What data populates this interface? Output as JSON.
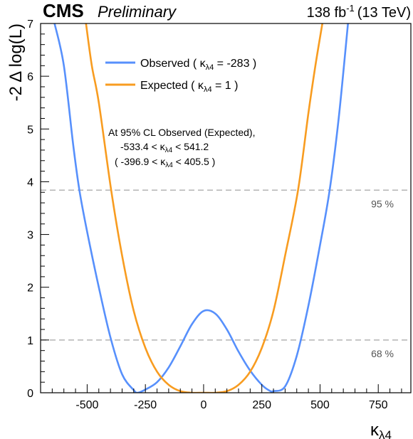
{
  "chart_data": {
    "type": "line",
    "experiment": "CMS",
    "status": "Preliminary",
    "lumi_text": "138 fb",
    "lumi_exp": "-1",
    "energy_text": "(13 TeV)",
    "xlabel": "κ",
    "xlabel_sub": "λ4",
    "ylabel": "-2 Δ log(L)",
    "xlim": [
      -700,
      890
    ],
    "ylim": [
      0,
      7
    ],
    "xticks": [
      -500,
      -250,
      0,
      250,
      500,
      750
    ],
    "yticks": [
      0,
      1,
      2,
      3,
      4,
      5,
      6,
      7
    ],
    "grid": false,
    "legend_position": "top-left",
    "series": [
      {
        "name": "Observed",
        "legend_label": "Observed ( κ",
        "legend_sub": "λ4",
        "legend_value": " =  -283 )",
        "color": "#5790fc",
        "x": [
          -640,
          -600,
          -560,
          -533.4,
          -500,
          -450,
          -400,
          -350,
          -300,
          -283,
          -250,
          -200,
          -150,
          -100,
          -50,
          0,
          50,
          100,
          150,
          200,
          250,
          283,
          300,
          350,
          400,
          450,
          500,
          541.2,
          580,
          620
        ],
        "y": [
          7.0,
          6.2,
          4.7,
          3.84,
          3.05,
          2.0,
          1.05,
          0.35,
          0.05,
          0.0,
          0.06,
          0.2,
          0.48,
          0.88,
          1.3,
          1.55,
          1.5,
          1.2,
          0.78,
          0.42,
          0.15,
          0.04,
          0.03,
          0.12,
          0.7,
          1.65,
          2.8,
          3.84,
          5.2,
          7.0
        ]
      },
      {
        "name": "Expected",
        "legend_label": "Expected ( κ",
        "legend_sub": "λ4",
        "legend_value": " =  1 )",
        "color": "#f89c20",
        "x": [
          -505,
          -480,
          -450,
          -396.9,
          -350,
          -300,
          -250,
          -200,
          -150,
          -100,
          -50,
          0,
          50,
          100,
          150,
          200,
          250,
          300,
          350,
          405.5,
          450,
          480,
          510
        ],
        "y": [
          7.0,
          6.2,
          5.5,
          3.84,
          2.6,
          1.55,
          0.85,
          0.4,
          0.15,
          0.03,
          0.0,
          0.0,
          0.0,
          0.03,
          0.15,
          0.4,
          0.85,
          1.55,
          2.6,
          3.84,
          5.3,
          6.2,
          7.0
        ]
      }
    ],
    "reference_lines": [
      {
        "y": 3.84,
        "label": "95 %"
      },
      {
        "y": 1.0,
        "label": "68 %"
      }
    ],
    "annotation": {
      "line1": "At 95% CL Observed (Expected),",
      "line2_pre": "-533.4 < κ",
      "line2_sub": "λ4",
      "line2_post": " < 541.2",
      "line3_pre": "( -396.9 < κ",
      "line3_sub": "λ4",
      "line3_post": " < 405.5 )"
    }
  }
}
